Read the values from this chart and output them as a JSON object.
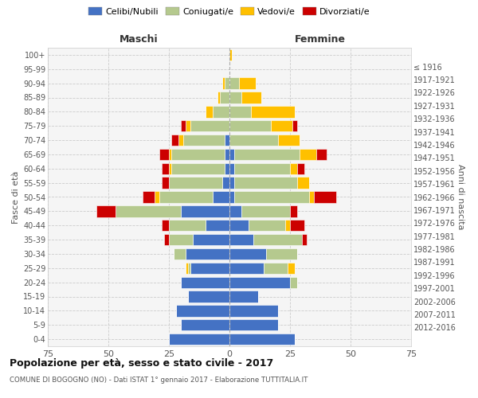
{
  "age_groups": [
    "0-4",
    "5-9",
    "10-14",
    "15-19",
    "20-24",
    "25-29",
    "30-34",
    "35-39",
    "40-44",
    "45-49",
    "50-54",
    "55-59",
    "60-64",
    "65-69",
    "70-74",
    "75-79",
    "80-84",
    "85-89",
    "90-94",
    "95-99",
    "100+"
  ],
  "birth_years": [
    "2012-2016",
    "2007-2011",
    "2002-2006",
    "1997-2001",
    "1992-1996",
    "1987-1991",
    "1982-1986",
    "1977-1981",
    "1972-1976",
    "1967-1971",
    "1962-1966",
    "1957-1961",
    "1952-1956",
    "1947-1951",
    "1942-1946",
    "1937-1941",
    "1932-1936",
    "1927-1931",
    "1922-1926",
    "1917-1921",
    "≤ 1916"
  ],
  "male": {
    "celibi": [
      25,
      20,
      22,
      17,
      20,
      16,
      18,
      15,
      10,
      20,
      7,
      3,
      2,
      2,
      2,
      0,
      0,
      0,
      0,
      0,
      0
    ],
    "coniugati": [
      0,
      0,
      0,
      0,
      0,
      1,
      5,
      10,
      15,
      27,
      22,
      22,
      22,
      22,
      17,
      16,
      7,
      4,
      2,
      0,
      0
    ],
    "vedovi": [
      0,
      0,
      0,
      0,
      0,
      1,
      0,
      0,
      0,
      0,
      2,
      0,
      1,
      1,
      2,
      2,
      3,
      1,
      1,
      0,
      0
    ],
    "divorziati": [
      0,
      0,
      0,
      0,
      0,
      0,
      0,
      2,
      3,
      8,
      5,
      3,
      3,
      4,
      3,
      2,
      0,
      0,
      0,
      0,
      0
    ]
  },
  "female": {
    "nubili": [
      27,
      20,
      20,
      12,
      25,
      14,
      15,
      10,
      8,
      5,
      2,
      2,
      2,
      2,
      0,
      0,
      0,
      0,
      0,
      0,
      0
    ],
    "coniugate": [
      0,
      0,
      0,
      0,
      3,
      10,
      13,
      20,
      15,
      20,
      31,
      26,
      23,
      27,
      20,
      17,
      9,
      5,
      4,
      0,
      0
    ],
    "vedove": [
      0,
      0,
      0,
      0,
      0,
      3,
      0,
      0,
      2,
      0,
      2,
      5,
      3,
      7,
      9,
      9,
      18,
      8,
      7,
      0,
      1
    ],
    "divorziate": [
      0,
      0,
      0,
      0,
      0,
      0,
      0,
      2,
      6,
      3,
      9,
      0,
      3,
      4,
      0,
      2,
      0,
      0,
      0,
      0,
      0
    ]
  },
  "colors": {
    "celibi": "#4472c4",
    "coniugati": "#b5c98e",
    "vedovi": "#ffc000",
    "divorziati": "#cc0000"
  },
  "title1": "Popolazione per età, sesso e stato civile - 2017",
  "title2": "COMUNE DI BOGOGNO (NO) - Dati ISTAT 1° gennaio 2017 - Elaborazione TUTTITALIA.IT",
  "ylabel": "Fasce di età",
  "ylabel2": "Anni di nascita",
  "xlabel_left": "Maschi",
  "xlabel_right": "Femmine",
  "xlim": 75,
  "legend_labels": [
    "Celibi/Nubili",
    "Coniugati/e",
    "Vedovi/e",
    "Divorziati/e"
  ],
  "background_color": "#f5f5f5",
  "grid_color": "#cccccc",
  "spine_color": "#cccccc"
}
